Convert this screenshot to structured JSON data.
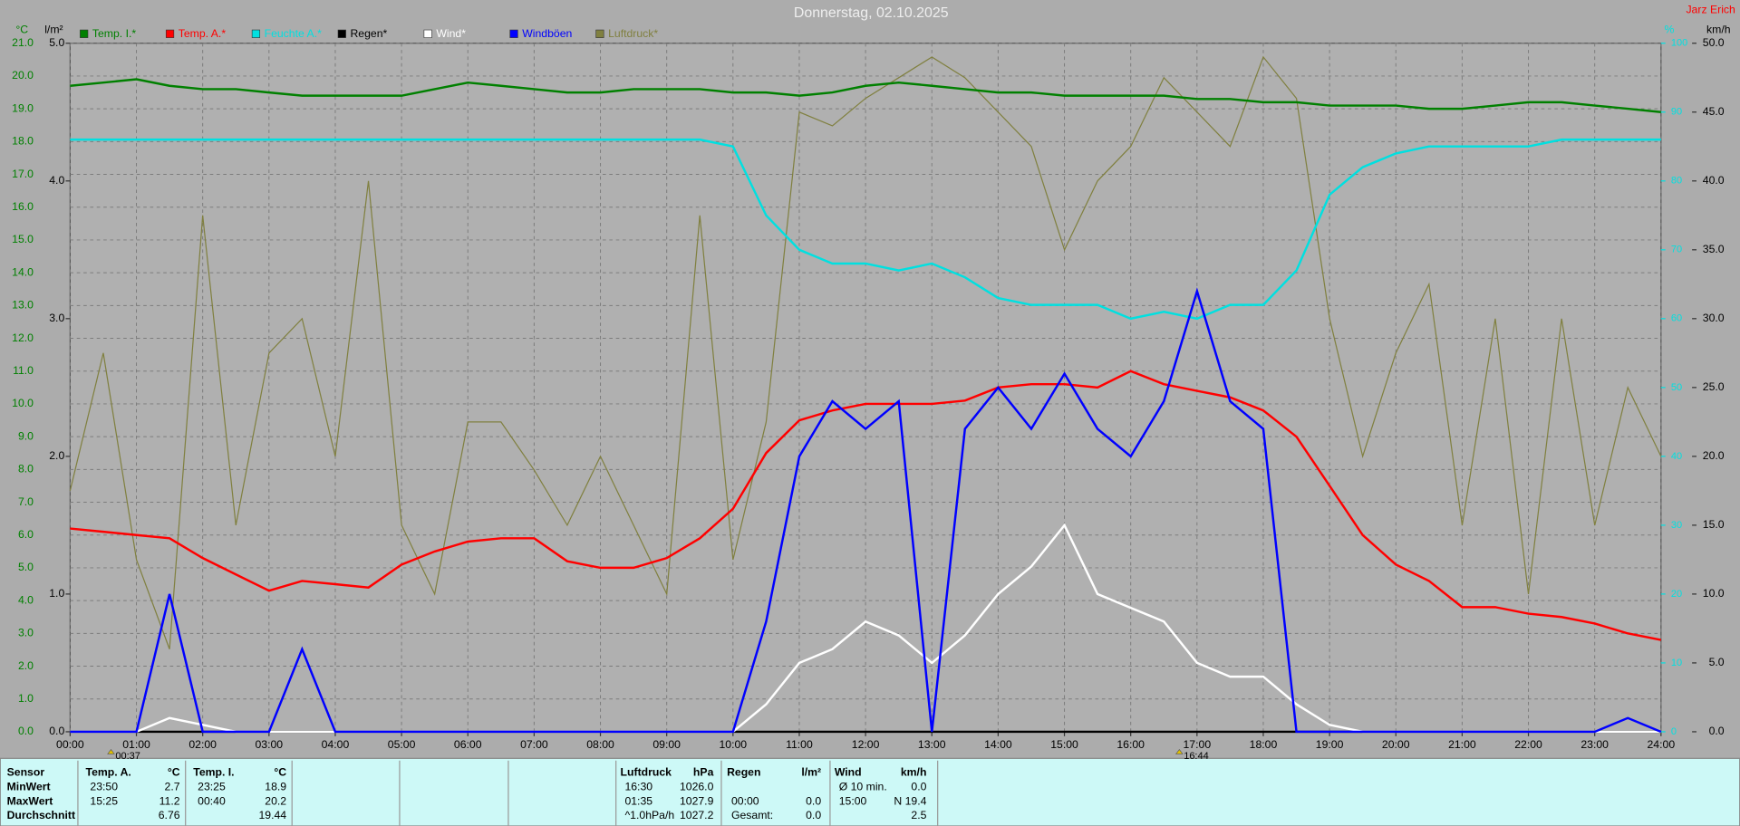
{
  "chart_data": {
    "type": "line",
    "title": "Donnerstag, 02.10.2025",
    "author": "Jarz Erich",
    "units": {
      "y": "°C",
      "y2": "l/m²",
      "y3": "%",
      "y4": "km/h"
    },
    "xlim": [
      0,
      24
    ],
    "xticks": [
      {
        "value": 0,
        "label": "00:00"
      },
      {
        "value": 1,
        "label": "01:00"
      },
      {
        "value": 2,
        "label": "02:00"
      },
      {
        "value": 3,
        "label": "03:00"
      },
      {
        "value": 4,
        "label": "04:00"
      },
      {
        "value": 5,
        "label": "05:00"
      },
      {
        "value": 6,
        "label": "06:00"
      },
      {
        "value": 7,
        "label": "07:00"
      },
      {
        "value": 8,
        "label": "08:00"
      },
      {
        "value": 9,
        "label": "09:00"
      },
      {
        "value": 10,
        "label": "10:00"
      },
      {
        "value": 11,
        "label": "11:00"
      },
      {
        "value": 12,
        "label": "12:00"
      },
      {
        "value": 13,
        "label": "13:00"
      },
      {
        "value": 14,
        "label": "14:00"
      },
      {
        "value": 15,
        "label": "15:00"
      },
      {
        "value": 16,
        "label": "16:00"
      },
      {
        "value": 17,
        "label": "17:00"
      },
      {
        "value": 18,
        "label": "18:00"
      },
      {
        "value": 19,
        "label": "19:00"
      },
      {
        "value": 20,
        "label": "20:00"
      },
      {
        "value": 21,
        "label": "21:00"
      },
      {
        "value": 22,
        "label": "22:00"
      },
      {
        "value": 23,
        "label": "23:00"
      },
      {
        "value": 24,
        "label": "24:00"
      }
    ],
    "ylim": [
      0,
      21
    ],
    "yticks": [
      {
        "value": 0,
        "label": "0.0"
      },
      {
        "value": 1,
        "label": "1.0"
      },
      {
        "value": 2,
        "label": "2.0"
      },
      {
        "value": 3,
        "label": "3.0"
      },
      {
        "value": 4,
        "label": "4.0"
      },
      {
        "value": 5,
        "label": "5.0"
      },
      {
        "value": 6,
        "label": "6.0"
      },
      {
        "value": 7,
        "label": "7.0"
      },
      {
        "value": 8,
        "label": "8.0"
      },
      {
        "value": 9,
        "label": "9.0"
      },
      {
        "value": 10,
        "label": "10.0"
      },
      {
        "value": 11,
        "label": "11.0"
      },
      {
        "value": 12,
        "label": "12.0"
      },
      {
        "value": 13,
        "label": "13.0"
      },
      {
        "value": 14,
        "label": "14.0"
      },
      {
        "value": 15,
        "label": "15.0"
      },
      {
        "value": 16,
        "label": "16.0"
      },
      {
        "value": 17,
        "label": "17.0"
      },
      {
        "value": 18,
        "label": "18.0"
      },
      {
        "value": 19,
        "label": "19.0"
      },
      {
        "value": 20,
        "label": "20.0"
      },
      {
        "value": 21,
        "label": "21.0"
      }
    ],
    "y2lim": [
      0,
      5
    ],
    "y2ticks": [
      {
        "value": 0,
        "label": "0.0"
      },
      {
        "value": 1,
        "label": "1.0"
      },
      {
        "value": 2,
        "label": "2.0"
      },
      {
        "value": 3,
        "label": "3.0"
      },
      {
        "value": 4,
        "label": "4.0"
      },
      {
        "value": 5,
        "label": "5.0"
      }
    ],
    "y3lim": [
      0,
      100
    ],
    "y3ticks": [
      0,
      10,
      20,
      30,
      40,
      50,
      60,
      70,
      80,
      90,
      100
    ],
    "y4lim": [
      0,
      50
    ],
    "y4ticks": [
      {
        "value": 0,
        "label": "0.0"
      },
      {
        "value": 5,
        "label": "5.0"
      },
      {
        "value": 10,
        "label": "10.0"
      },
      {
        "value": 15,
        "label": "15.0"
      },
      {
        "value": 20,
        "label": "20.0"
      },
      {
        "value": 25,
        "label": "25.0"
      },
      {
        "value": 30,
        "label": "30.0"
      },
      {
        "value": 35,
        "label": "35.0"
      },
      {
        "value": 40,
        "label": "40.0"
      },
      {
        "value": 45,
        "label": "45.0"
      },
      {
        "value": 50,
        "label": "50.0"
      }
    ],
    "grid": true,
    "x": [
      0,
      0.5,
      1,
      1.5,
      2,
      2.5,
      3,
      3.5,
      4,
      4.5,
      5,
      5.5,
      6,
      6.5,
      7,
      7.5,
      8,
      8.5,
      9,
      9.5,
      10,
      10.5,
      11,
      11.5,
      12,
      12.5,
      13,
      13.5,
      14,
      14.5,
      15,
      15.5,
      16,
      16.5,
      17,
      17.5,
      18,
      18.5,
      19,
      19.5,
      20,
      20.5,
      21,
      21.5,
      22,
      22.5,
      23,
      23.5,
      24
    ],
    "series": [
      {
        "name": "Temp. I.*",
        "color": "#008000",
        "axis": "y",
        "values": [
          19.7,
          19.8,
          19.9,
          19.7,
          19.6,
          19.6,
          19.5,
          19.4,
          19.4,
          19.4,
          19.4,
          19.6,
          19.8,
          19.7,
          19.6,
          19.5,
          19.5,
          19.6,
          19.6,
          19.6,
          19.5,
          19.5,
          19.4,
          19.5,
          19.7,
          19.8,
          19.7,
          19.6,
          19.5,
          19.5,
          19.4,
          19.4,
          19.4,
          19.4,
          19.3,
          19.3,
          19.2,
          19.2,
          19.1,
          19.1,
          19.1,
          19.0,
          19.0,
          19.1,
          19.2,
          19.2,
          19.1,
          19.0,
          18.9
        ]
      },
      {
        "name": "Temp. A.*",
        "color": "#ff0000",
        "axis": "y",
        "values": [
          6.2,
          6.1,
          6.0,
          5.9,
          5.3,
          4.8,
          4.3,
          4.6,
          4.5,
          4.4,
          5.1,
          5.5,
          5.8,
          5.9,
          5.9,
          5.2,
          5.0,
          5.0,
          5.3,
          5.9,
          6.8,
          8.5,
          9.5,
          9.8,
          10.0,
          10.0,
          10.0,
          10.1,
          10.5,
          10.6,
          10.6,
          10.5,
          11.0,
          10.6,
          10.4,
          10.2,
          9.8,
          9.0,
          7.5,
          6.0,
          5.1,
          4.6,
          3.8,
          3.8,
          3.6,
          3.5,
          3.3,
          3.0,
          2.8
        ]
      },
      {
        "name": "Feuchte A.*",
        "color": "#00e0e0",
        "axis": "y3",
        "values": [
          86,
          86,
          86,
          86,
          86,
          86,
          86,
          86,
          86,
          86,
          86,
          86,
          86,
          86,
          86,
          86,
          86,
          86,
          86,
          86,
          85,
          75,
          70,
          68,
          68,
          67,
          68,
          66,
          63,
          62,
          62,
          62,
          60,
          61,
          60,
          62,
          62,
          67,
          78,
          82,
          84,
          85,
          85,
          85,
          85,
          86,
          86,
          86,
          86
        ]
      },
      {
        "name": "Regen*",
        "color": "#000000",
        "axis": "y2",
        "values": [
          0,
          0,
          0,
          0,
          0,
          0,
          0,
          0,
          0,
          0,
          0,
          0,
          0,
          0,
          0,
          0,
          0,
          0,
          0,
          0,
          0,
          0,
          0,
          0,
          0,
          0,
          0,
          0,
          0,
          0,
          0,
          0,
          0,
          0,
          0,
          0,
          0,
          0,
          0,
          0,
          0,
          0,
          0,
          0,
          0,
          0,
          0,
          0,
          0
        ]
      },
      {
        "name": "Wind*",
        "color": "#ffffff",
        "axis": "y4",
        "values": [
          0,
          0,
          0,
          1,
          0.5,
          0,
          0,
          0,
          0,
          0,
          0,
          0,
          0,
          0,
          0,
          0,
          0,
          0,
          0,
          0,
          0,
          2,
          5,
          6,
          8,
          7,
          5,
          7,
          10,
          12,
          15,
          10,
          9,
          8,
          5,
          4,
          4,
          2,
          0.5,
          0,
          0,
          0,
          0,
          0,
          0,
          0,
          0,
          0,
          0
        ]
      },
      {
        "name": "Windböen",
        "color": "#0000ff",
        "axis": "y4",
        "values": [
          0,
          0,
          0,
          10,
          0,
          0,
          0,
          6,
          0,
          0,
          0,
          0,
          0,
          0,
          0,
          0,
          0,
          0,
          0,
          0,
          0,
          8,
          20,
          24,
          22,
          24,
          0,
          22,
          25,
          22,
          26,
          22,
          20,
          24,
          32,
          24,
          22,
          0,
          0,
          0,
          0,
          0,
          0,
          0,
          0,
          0,
          0,
          1,
          0
        ]
      },
      {
        "name": "Luftdruck*",
        "color": "#808040",
        "axis": "y3",
        "values": [
          35,
          55,
          25,
          12,
          75,
          30,
          55,
          60,
          40,
          80,
          30,
          20,
          45,
          45,
          38,
          30,
          40,
          30,
          20,
          75,
          25,
          45,
          90,
          88,
          92,
          95,
          98,
          95,
          90,
          85,
          70,
          80,
          85,
          95,
          90,
          85,
          98,
          92,
          60,
          40,
          55,
          65,
          30,
          60,
          20,
          60,
          30,
          50,
          40
        ]
      }
    ],
    "annotations": [
      {
        "x": 0.6167,
        "label": "00:37"
      },
      {
        "x": 16.7333,
        "label": "16:44"
      }
    ]
  },
  "table": {
    "corner": "Sensor",
    "row_labels": [
      "MinWert",
      "MaxWert",
      "Durchschnitt"
    ],
    "columns": [
      {
        "title": "Temp. A.",
        "unit": "°C",
        "cells": [
          [
            "23:50",
            "2.7"
          ],
          [
            "15:25",
            "11.2"
          ],
          [
            null,
            "6.76"
          ]
        ]
      },
      {
        "title": "Temp. I.",
        "unit": "°C",
        "cells": [
          [
            "23:25",
            "18.9"
          ],
          [
            "00:40",
            "20.2"
          ],
          [
            null,
            "19.44"
          ]
        ]
      },
      {
        "title": "Luftdruck",
        "unit": "hPa",
        "cells": [
          [
            "16:30",
            "1026.0"
          ],
          [
            "01:35",
            "1027.9"
          ],
          [
            "^1.0hPa/h",
            "1027.2"
          ]
        ]
      },
      {
        "title": "Regen",
        "unit": "l/m²",
        "cells": [
          [
            null,
            null
          ],
          [
            "00:00",
            "0.0"
          ],
          [
            "Gesamt:",
            "0.0"
          ]
        ]
      },
      {
        "title": "Wind",
        "unit": "km/h",
        "cells": [
          [
            "Ø 10 min.",
            "0.0"
          ],
          [
            "15:00",
            "N 19.4"
          ],
          [
            null,
            "2.5"
          ]
        ]
      }
    ]
  }
}
